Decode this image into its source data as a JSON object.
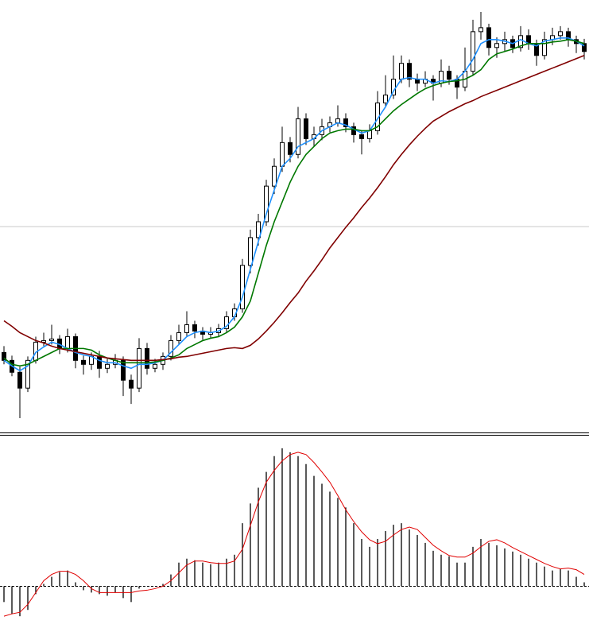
{
  "chart_data": [
    {
      "type": "candlestick",
      "ylim": [
        0,
        545
      ],
      "up_color": "#ffffff",
      "down_color": "#000000",
      "edge_color": "#000000",
      "hline": {
        "value": 259,
        "color": "#c8c8c8"
      },
      "open": [
        100,
        90,
        75,
        55,
        90,
        113,
        115,
        117,
        105,
        120,
        90,
        85,
        95,
        80,
        85,
        90,
        65,
        55,
        105,
        80,
        85,
        95,
        115,
        125,
        135,
        127,
        123,
        125,
        130,
        145,
        155,
        210,
        245,
        265,
        310,
        335,
        365,
        350,
        395,
        370,
        375,
        385,
        390,
        395,
        385,
        375,
        370,
        380,
        415,
        425,
        445,
        465,
        445,
        440,
        445,
        440,
        455,
        445,
        435,
        455,
        505,
        510,
        485,
        490,
        495,
        485,
        500,
        490,
        475,
        495,
        500,
        505,
        495,
        490
      ],
      "high": [
        108,
        96,
        82,
        95,
        120,
        125,
        135,
        122,
        130,
        124,
        96,
        100,
        102,
        92,
        98,
        95,
        72,
        118,
        112,
        92,
        100,
        122,
        135,
        152,
        140,
        132,
        132,
        136,
        152,
        162,
        218,
        255,
        275,
        318,
        345,
        385,
        372,
        410,
        402,
        385,
        395,
        398,
        412,
        402,
        390,
        380,
        388,
        430,
        450,
        475,
        475,
        470,
        452,
        455,
        450,
        470,
        462,
        450,
        485,
        520,
        530,
        515,
        498,
        505,
        500,
        512,
        508,
        495,
        505,
        510,
        512,
        510,
        500,
        496
      ],
      "low": [
        85,
        70,
        17,
        50,
        86,
        108,
        110,
        98,
        100,
        80,
        72,
        78,
        68,
        74,
        80,
        45,
        35,
        50,
        72,
        75,
        78,
        90,
        110,
        120,
        118,
        116,
        118,
        120,
        126,
        140,
        150,
        200,
        235,
        260,
        300,
        328,
        340,
        345,
        362,
        360,
        368,
        378,
        385,
        378,
        365,
        350,
        365,
        375,
        410,
        420,
        440,
        435,
        430,
        435,
        418,
        435,
        438,
        420,
        430,
        450,
        495,
        475,
        472,
        480,
        478,
        480,
        482,
        462,
        470,
        488,
        495,
        486,
        478,
        470
      ],
      "close": [
        90,
        75,
        55,
        90,
        113,
        115,
        117,
        105,
        120,
        90,
        85,
        95,
        80,
        85,
        90,
        65,
        55,
        105,
        80,
        85,
        95,
        115,
        125,
        135,
        127,
        123,
        125,
        130,
        145,
        155,
        210,
        245,
        265,
        310,
        335,
        365,
        350,
        395,
        370,
        375,
        385,
        390,
        395,
        385,
        375,
        370,
        380,
        415,
        425,
        445,
        465,
        445,
        440,
        445,
        440,
        455,
        445,
        435,
        455,
        505,
        510,
        485,
        490,
        495,
        485,
        500,
        490,
        475,
        495,
        500,
        505,
        495,
        490,
        480
      ],
      "series": [
        {
          "color": "#1e90ff",
          "values": [
            90,
            83,
            77,
            83,
            100,
            107,
            113,
            110,
            105,
            100,
            97,
            95,
            90,
            87,
            87,
            83,
            80,
            85,
            85,
            87,
            90,
            100,
            110,
            120,
            125,
            127,
            125,
            127,
            133,
            145,
            170,
            205,
            240,
            275,
            305,
            335,
            345,
            360,
            365,
            370,
            380,
            385,
            390,
            387,
            382,
            377,
            380,
            395,
            410,
            430,
            445,
            447,
            445,
            445,
            440,
            443,
            442,
            445,
            455,
            470,
            490,
            495,
            495,
            493,
            490,
            495,
            490,
            487,
            493,
            495,
            497,
            497,
            493,
            487
          ]
        },
        {
          "color": "#007800",
          "values": [
            93,
            85,
            83,
            85,
            90,
            95,
            100,
            105,
            105,
            105,
            105,
            103,
            97,
            93,
            90,
            87,
            87,
            87,
            87,
            88,
            90,
            93,
            97,
            105,
            110,
            115,
            118,
            120,
            125,
            132,
            145,
            165,
            200,
            235,
            265,
            290,
            315,
            335,
            350,
            360,
            370,
            377,
            380,
            382,
            382,
            380,
            380,
            385,
            395,
            405,
            413,
            420,
            427,
            433,
            437,
            440,
            442,
            443,
            445,
            450,
            457,
            470,
            477,
            480,
            483,
            487,
            490,
            490,
            490,
            492,
            493,
            495,
            493,
            490
          ]
        },
        {
          "color": "#800000",
          "values": [
            140,
            133,
            125,
            120,
            115,
            112,
            108,
            105,
            103,
            101,
            99,
            97,
            95,
            93,
            92,
            91,
            90,
            90,
            90,
            90,
            91,
            92,
            94,
            95,
            97,
            99,
            101,
            103,
            105,
            106,
            105,
            109,
            117,
            127,
            138,
            150,
            163,
            175,
            190,
            203,
            217,
            232,
            245,
            258,
            270,
            283,
            295,
            308,
            322,
            337,
            350,
            362,
            373,
            383,
            392,
            398,
            404,
            409,
            414,
            418,
            423,
            427,
            431,
            435,
            439,
            443,
            447,
            451,
            455,
            459,
            463,
            467,
            471,
            475
          ]
        }
      ]
    },
    {
      "type": "bar",
      "ylim": [
        -58,
        189
      ],
      "color": "#000000",
      "zero_line": true,
      "values": [
        -20,
        -35,
        -38,
        -30,
        -10,
        3,
        12,
        18,
        20,
        5,
        -5,
        -8,
        -10,
        -12,
        -8,
        -15,
        -20,
        -3,
        0,
        0,
        3,
        15,
        30,
        35,
        33,
        30,
        28,
        30,
        35,
        40,
        80,
        105,
        125,
        145,
        165,
        175,
        170,
        165,
        155,
        140,
        130,
        120,
        112,
        100,
        80,
        60,
        50,
        60,
        70,
        78,
        80,
        72,
        65,
        55,
        45,
        40,
        38,
        30,
        30,
        50,
        60,
        55,
        52,
        48,
        44,
        40,
        35,
        30,
        25,
        20,
        22,
        20,
        12,
        5
      ],
      "signal": {
        "color": "#e00000",
        "values": [
          -38,
          -35,
          -33,
          -23,
          -8,
          7,
          15,
          19,
          19,
          15,
          7,
          -3,
          -8,
          -8,
          -8,
          -8,
          -8,
          -6,
          -5,
          -3,
          0,
          7,
          17,
          27,
          32,
          32,
          30,
          29,
          29,
          32,
          47,
          77,
          107,
          132,
          147,
          159,
          167,
          170,
          167,
          157,
          145,
          132,
          115,
          97,
          82,
          69,
          59,
          54,
          57,
          65,
          72,
          75,
          72,
          62,
          52,
          45,
          39,
          37,
          37,
          42,
          50,
          57,
          59,
          55,
          49,
          44,
          39,
          34,
          29,
          25,
          22,
          23,
          21,
          15
        ]
      }
    }
  ]
}
